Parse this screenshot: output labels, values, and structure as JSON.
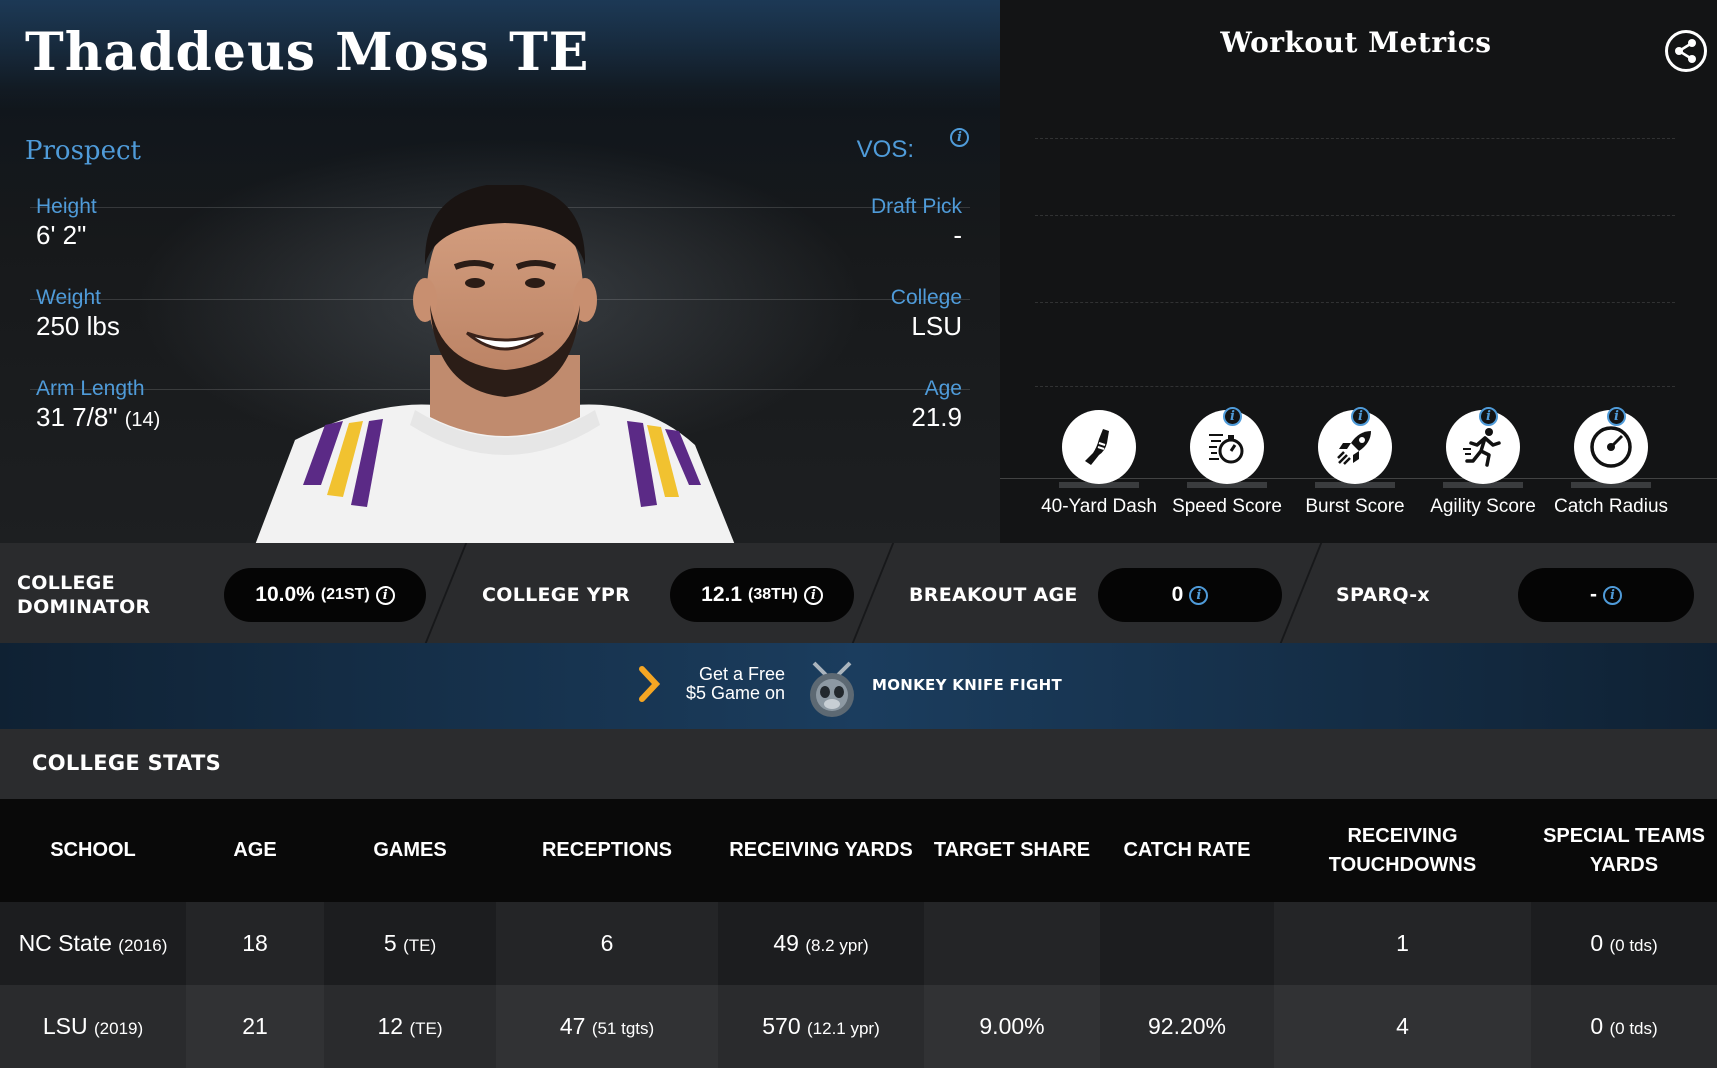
{
  "player": {
    "name": "Thaddeus Moss TE",
    "status": "Prospect",
    "vos_label": "VOS:",
    "attributes_left": [
      {
        "label": "Height",
        "value": "6' 2\"",
        "note": ""
      },
      {
        "label": "Weight",
        "value": "250 lbs",
        "note": ""
      },
      {
        "label": "Arm Length",
        "value": "31 7/8\"",
        "note": "(14)"
      }
    ],
    "attributes_right": [
      {
        "label": "Draft Pick",
        "value": "-"
      },
      {
        "label": "College",
        "value": "LSU"
      },
      {
        "label": "Age",
        "value": "21.9"
      }
    ]
  },
  "workout": {
    "title": "Workout Metrics",
    "metrics": [
      {
        "label": "40-Yard Dash",
        "icon": "shoe-icon",
        "has_info": false
      },
      {
        "label": "Speed Score",
        "icon": "stopwatch-icon",
        "has_info": true
      },
      {
        "label": "Burst Score",
        "icon": "rocket-icon",
        "has_info": true
      },
      {
        "label": "Agility Score",
        "icon": "runner-icon",
        "has_info": true
      },
      {
        "label": "Catch Radius",
        "icon": "target-icon",
        "has_info": true
      }
    ]
  },
  "metrics_bar": [
    {
      "label": "COLLEGE DOMINATOR",
      "value": "10.0%",
      "rank": "(21ST)"
    },
    {
      "label": "COLLEGE YPR",
      "value": "12.1",
      "rank": "(38TH)"
    },
    {
      "label": "BREAKOUT AGE",
      "value": "0",
      "rank": ""
    },
    {
      "label": "SPARQ-x",
      "value": "-",
      "rank": ""
    }
  ],
  "ad": {
    "line1": "Get a Free",
    "line2": "$5 Game on",
    "brand": "MONKEY KNIFE FIGHT"
  },
  "college_stats": {
    "title": "COLLEGE STATS",
    "columns": [
      "SCHOOL",
      "AGE",
      "GAMES",
      "RECEPTIONS",
      "RECEIVING YARDS",
      "TARGET SHARE",
      "CATCH RATE",
      "RECEIVING TOUCHDOWNS",
      "SPECIAL TEAMS YARDS"
    ],
    "rows": [
      {
        "school": "NC State",
        "year": "(2016)",
        "age": "18",
        "games": "5",
        "games_note": "(TE)",
        "receptions": "6",
        "receptions_note": "",
        "yards": "49",
        "yards_note": "(8.2 ypr)",
        "target_share": "",
        "catch_rate": "",
        "tds": "1",
        "st_yards": "0",
        "st_note": "(0 tds)"
      },
      {
        "school": "LSU",
        "year": "(2019)",
        "age": "21",
        "games": "12",
        "games_note": "(TE)",
        "receptions": "47",
        "receptions_note": "(51 tgts)",
        "yards": "570",
        "yards_note": "(12.1 ypr)",
        "target_share": "9.00%",
        "catch_rate": "92.20%",
        "tds": "4",
        "st_yards": "0",
        "st_note": "(0 tds)"
      }
    ]
  },
  "colors": {
    "accent_blue": "#4f9bd9",
    "ad_chevron": "#f5a623"
  }
}
